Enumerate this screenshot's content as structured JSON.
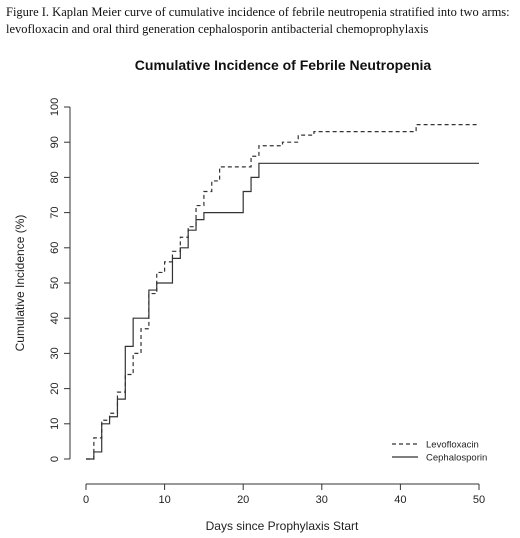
{
  "caption": "Figure I. Kaplan Meier curve of cumulative incidence of febrile neutropenia stratified into two arms: levofloxacin and oral third generation cephalosporin antibacterial chemoprophylaxis",
  "chart_data": {
    "type": "line",
    "step": true,
    "title": "Cumulative Incidence of Febrile Neutropenia",
    "xlabel": "Days since Prophylaxis Start",
    "ylabel": "Cumulative Incidence (%)",
    "xlim": [
      0,
      50
    ],
    "ylim": [
      0,
      100
    ],
    "xticks": [
      0,
      10,
      20,
      30,
      40,
      50
    ],
    "yticks": [
      0,
      10,
      20,
      30,
      40,
      50,
      60,
      70,
      80,
      90,
      100
    ],
    "grid": false,
    "legend_position": "bottom-right",
    "series": [
      {
        "name": "Levofloxacin",
        "line_style": "dashed",
        "color": "#333333",
        "x": [
          0,
          1,
          2,
          3,
          4,
          5,
          6,
          7,
          8,
          9,
          10,
          11,
          12,
          13,
          14,
          15,
          16,
          17,
          19,
          20,
          21,
          22,
          24,
          25,
          26,
          27,
          29,
          33,
          41,
          42,
          50
        ],
        "y": [
          0,
          6,
          11,
          13,
          19,
          24,
          30,
          37,
          47,
          53,
          56,
          59,
          63,
          66,
          72,
          76,
          79,
          83,
          83,
          83,
          86,
          89,
          89,
          90,
          90,
          92,
          93,
          93,
          93,
          95,
          95
        ]
      },
      {
        "name": "Cephalosporin",
        "line_style": "solid",
        "color": "#333333",
        "x": [
          0,
          1,
          2,
          3,
          4,
          5,
          6,
          7,
          8,
          9,
          10,
          11,
          12,
          13,
          14,
          15,
          16,
          17,
          19,
          20,
          21,
          22,
          24,
          25,
          26,
          27,
          29,
          33,
          41,
          42,
          50
        ],
        "y": [
          0,
          2,
          10,
          12,
          17,
          32,
          40,
          40,
          48,
          50,
          50,
          57,
          60,
          65,
          68,
          70,
          70,
          70,
          70,
          76,
          80,
          84,
          84,
          84,
          84,
          84,
          84,
          84,
          84,
          84,
          84
        ]
      }
    ]
  }
}
